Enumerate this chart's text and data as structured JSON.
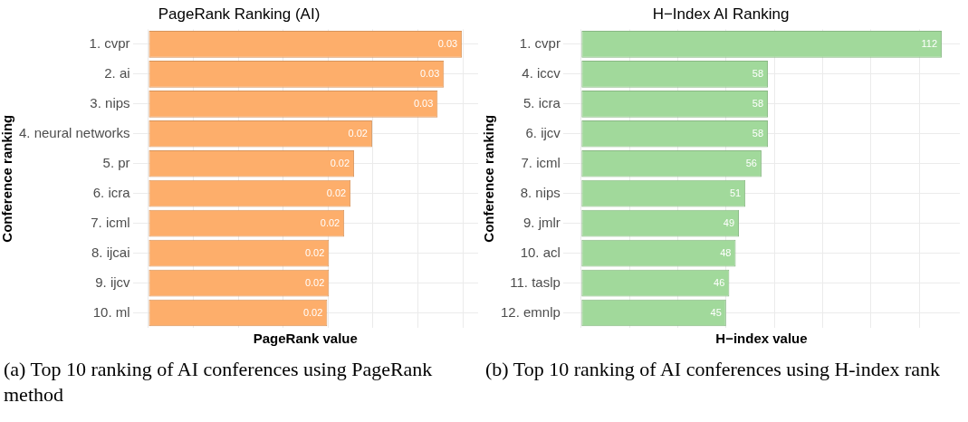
{
  "chart_data": [
    {
      "type": "bar",
      "orientation": "horizontal",
      "title": "PageRank Ranking (AI)",
      "xlabel": "PageRank value",
      "ylabel": "Conference ranking",
      "categories": [
        "1. cvpr",
        "2. ai",
        "3. nips",
        "4. neural networks",
        "5. pr",
        "6. icra",
        "7. icml",
        "8. ijcai",
        "9. ijcv",
        "10. ml"
      ],
      "values": [
        0.0349,
        0.0329,
        0.0322,
        0.0249,
        0.0229,
        0.0225,
        0.0218,
        0.0201,
        0.0201,
        0.0199
      ],
      "value_labels": [
        "0.03",
        "0.03",
        "0.03",
        "0.02",
        "0.02",
        "0.02",
        "0.02",
        "0.02",
        "0.02",
        "0.02"
      ],
      "color": "#fdae6b",
      "xlim": [
        -0.00175,
        0.0367
      ],
      "xticks": [
        {
          "value": 0,
          "label": null
        },
        {
          "value": 0.005,
          "label": null
        },
        {
          "value": 0.01,
          "label": null
        },
        {
          "value": 0.015,
          "label": null
        },
        {
          "value": 0.02,
          "label": null
        },
        {
          "value": 0.025,
          "label": null
        },
        {
          "value": 0.03,
          "label": null
        },
        {
          "value": 0.035,
          "label": null
        }
      ],
      "tick_labels": "y",
      "grid": true,
      "legend": false,
      "annotations": [
        "(a) Top 10 ranking of AI conferences using PageRank method"
      ]
    },
    {
      "type": "bar",
      "orientation": "horizontal",
      "title": "H−Index AI Ranking",
      "xlabel": "H−index value",
      "ylabel": "Conference ranking",
      "categories": [
        "1. cvpr",
        "4. iccv",
        "5. icra",
        "6. ijcv",
        "7. icml",
        "8. nips",
        "9. jmlr",
        "10. acl",
        "11. taslp",
        "12. emnlp"
      ],
      "values": [
        112,
        58,
        58,
        58,
        56,
        51,
        49,
        48,
        46,
        45
      ],
      "data_labels": true,
      "color": "#a1d99b",
      "xlim": [
        -5.6,
        117.6
      ],
      "xticks": [
        {
          "value": 0,
          "label": null
        },
        {
          "value": 15,
          "label": null
        },
        {
          "value": 30,
          "label": null
        },
        {
          "value": 45,
          "label": null
        },
        {
          "value": 60,
          "label": null
        },
        {
          "value": 75,
          "label": null
        },
        {
          "value": 90,
          "label": null
        },
        {
          "value": 105,
          "label": null
        }
      ],
      "tick_labels": "y",
      "grid": true,
      "legend": false,
      "annotations": [
        "(b) Top 10 ranking of AI conferences using H-index rank"
      ]
    }
  ]
}
